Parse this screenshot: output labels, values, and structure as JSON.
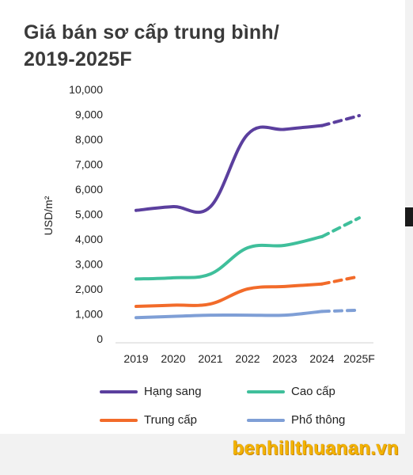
{
  "title_line1": "Giá bán sơ cấp trung bình/",
  "title_line2": "2019-2025F",
  "watermark": "benhillthuanan.vn",
  "chart_data": {
    "type": "line",
    "title": "Giá bán sơ cấp trung bình/ 2019-2025F",
    "ylabel": "USD/m²",
    "xlabel": "",
    "categories": [
      "2019",
      "2020",
      "2021",
      "2022",
      "2023",
      "2024",
      "2025F"
    ],
    "y_ticks": [
      "0",
      "1,000",
      "2,000",
      "3,000",
      "4,000",
      "5,000",
      "6,000",
      "7,000",
      "8,000",
      "9,000",
      "10,000"
    ],
    "ylim": [
      0,
      10000
    ],
    "grid": false,
    "legend_position": "bottom",
    "forecast_from": "2024",
    "series": [
      {
        "name": "Hạng sang",
        "color": "#5b3f9e",
        "values": [
          5150,
          5300,
          5300,
          8200,
          8400,
          8550,
          8950
        ]
      },
      {
        "name": "Cao cấp",
        "color": "#3fbf9b",
        "values": [
          2400,
          2450,
          2600,
          3650,
          3750,
          4100,
          4850
        ]
      },
      {
        "name": "Trung cấp",
        "color": "#f26b2a",
        "values": [
          1300,
          1350,
          1400,
          2000,
          2100,
          2200,
          2500
        ]
      },
      {
        "name": "Phổ thông",
        "color": "#7f9fd6",
        "values": [
          850,
          900,
          950,
          950,
          950,
          1100,
          1150
        ]
      }
    ]
  }
}
